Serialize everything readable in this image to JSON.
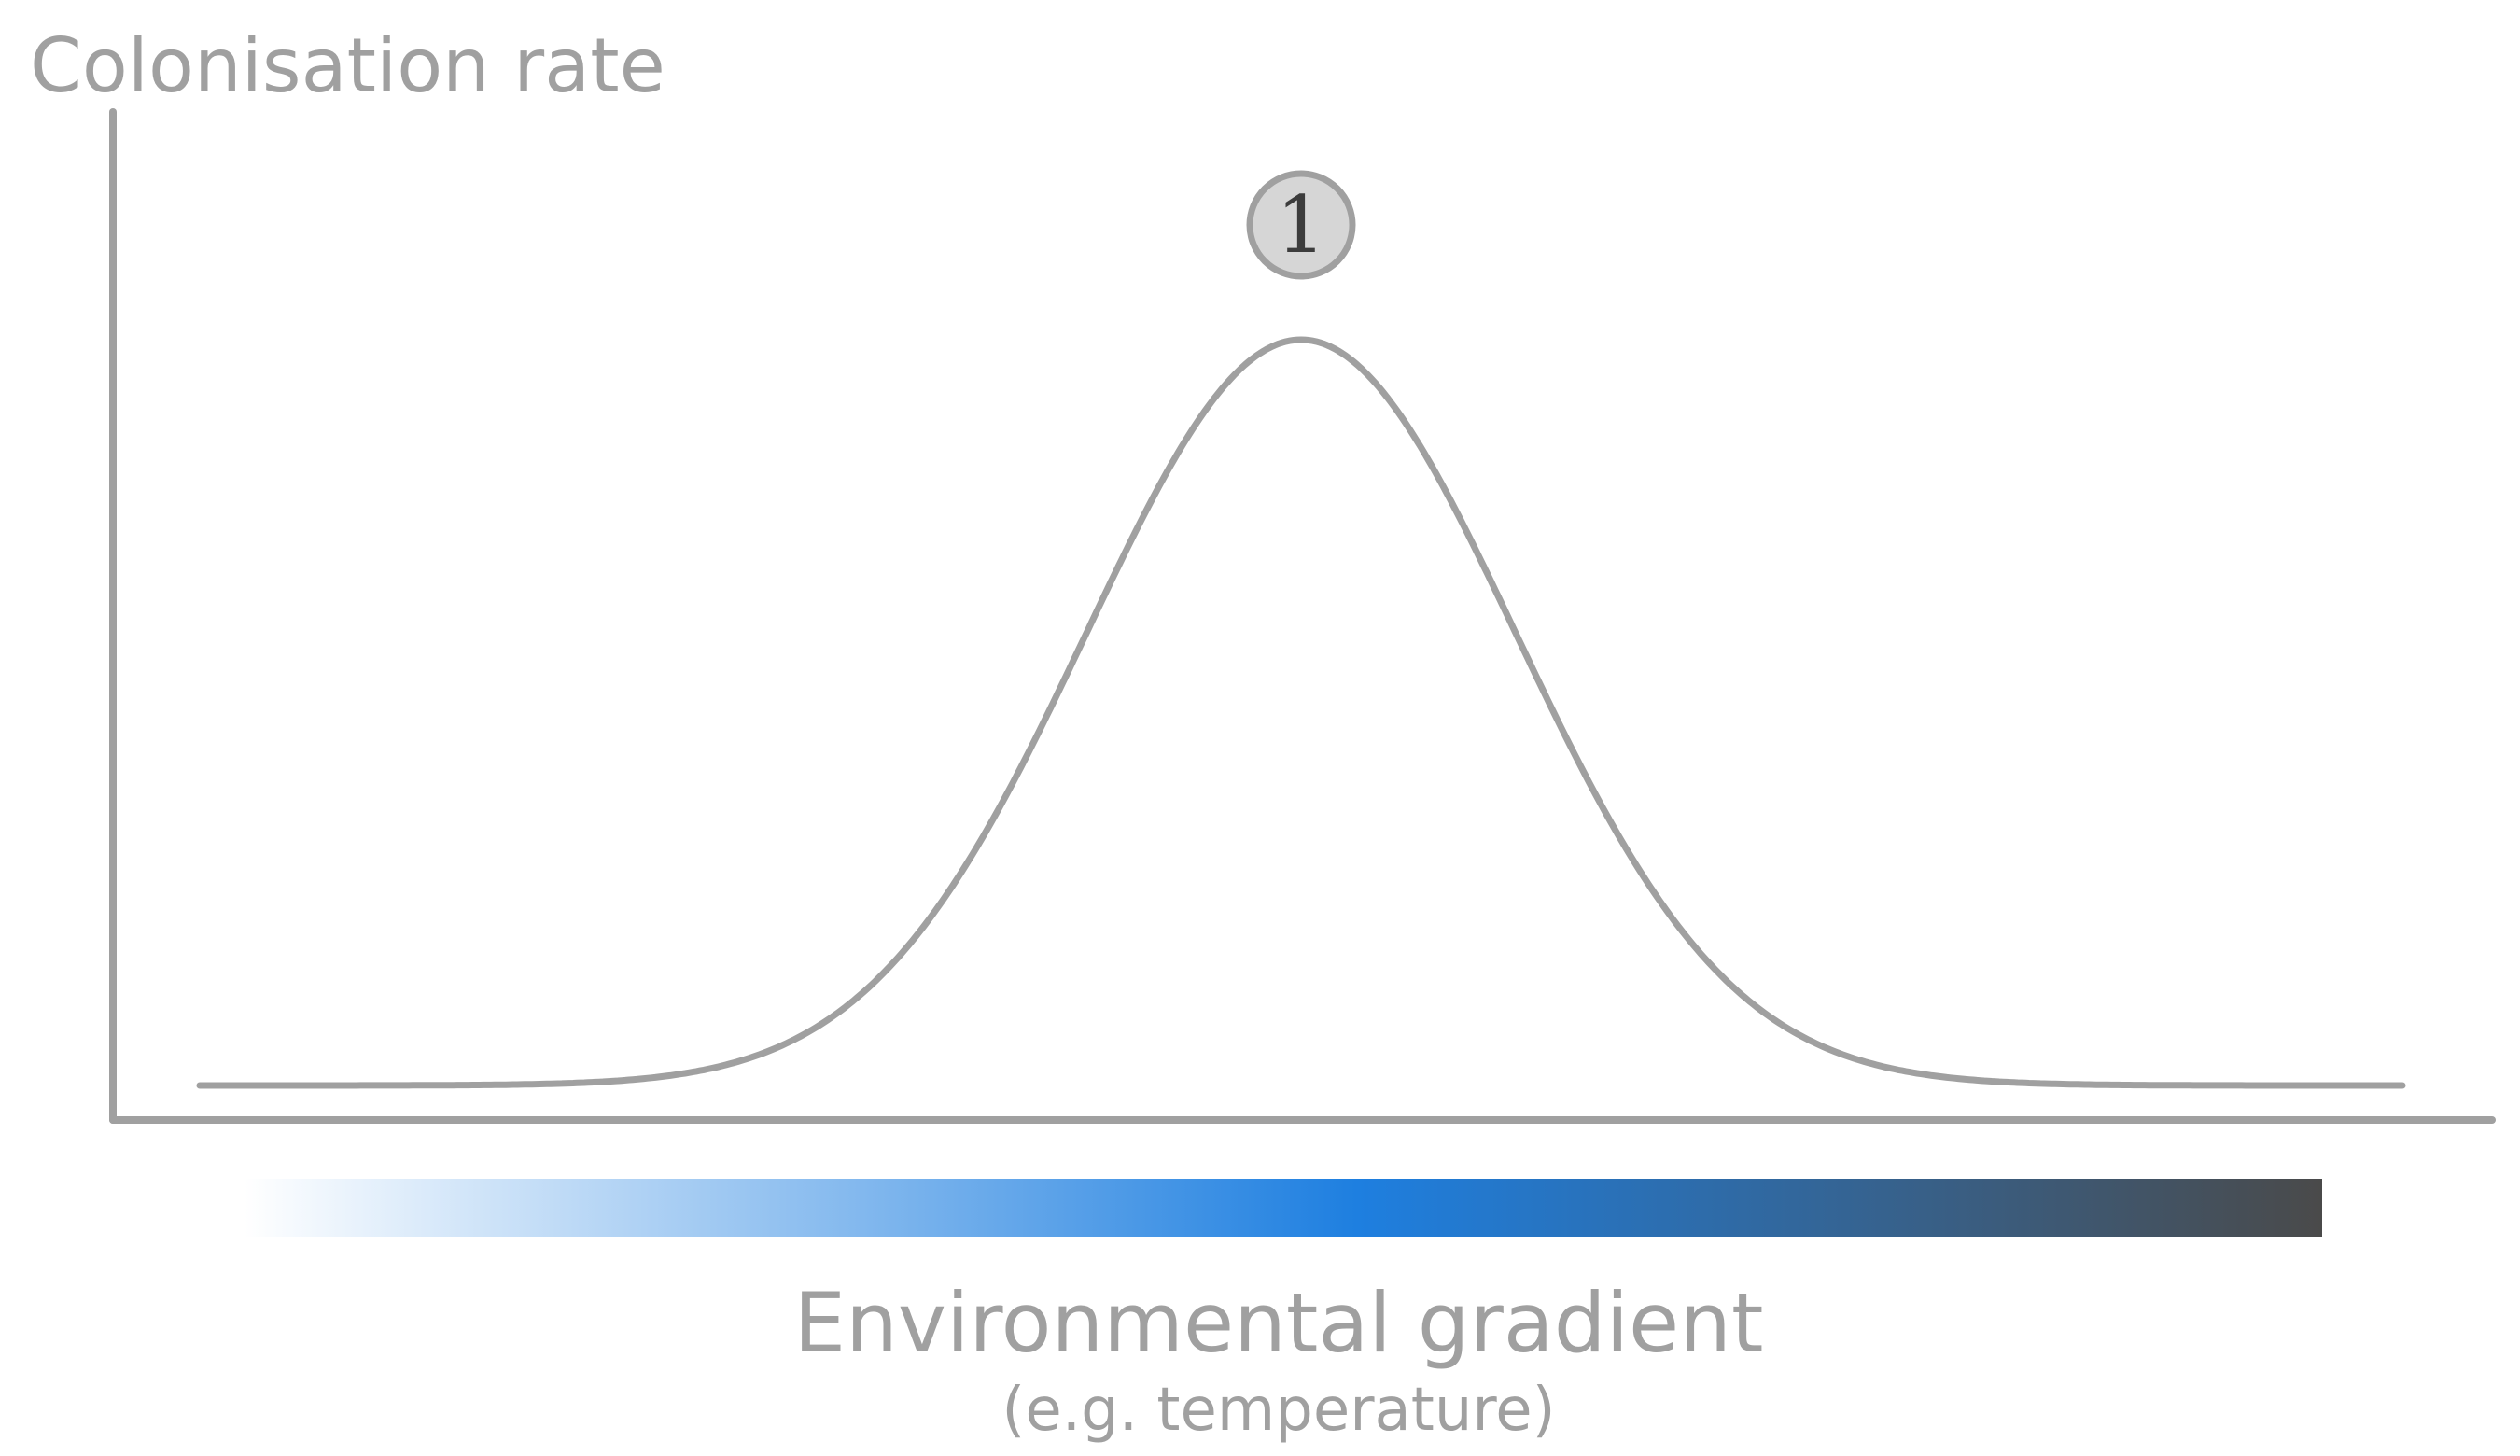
{
  "figure": {
    "y_axis_label": "Colonisation rate",
    "x_axis_label": "Environmental gradient",
    "x_axis_sublabel": "(e.g. temperature)",
    "peak_marker_label": "1"
  },
  "colors": {
    "axis": "#a0a0a0",
    "curve": "#a0a0a0",
    "marker_fill": "#d6d6d6",
    "marker_stroke": "#a0a0a0",
    "marker_text": "#3c3c3c",
    "gradient_start": "#ffffff",
    "gradient_mid": "#1e7fe0",
    "gradient_end": "#4a4a4a",
    "label": "#a0a0a0"
  }
}
